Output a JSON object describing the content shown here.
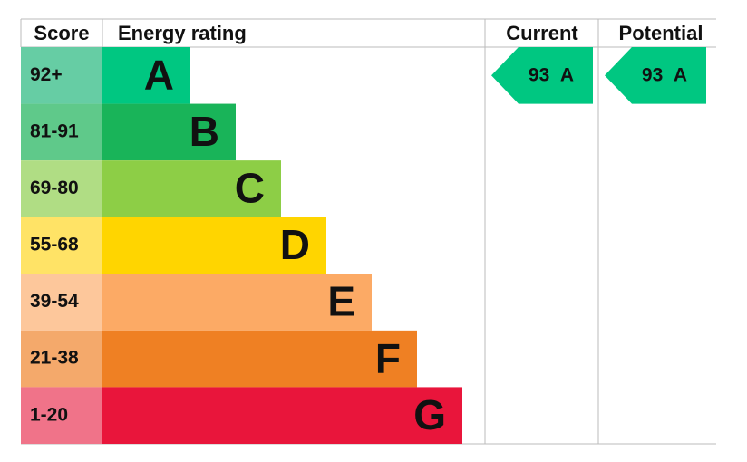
{
  "header": {
    "score": "Score",
    "rating": "Energy rating",
    "current": "Current",
    "potential": "Potential"
  },
  "bands": [
    {
      "score": "92+",
      "letter": "A",
      "color": "#00c781",
      "score_color": "#66cda4"
    },
    {
      "score": "81-91",
      "letter": "B",
      "color": "#19b459",
      "score_color": "#5fc98a"
    },
    {
      "score": "69-80",
      "letter": "C",
      "color": "#8dce46",
      "score_color": "#b0dd84"
    },
    {
      "score": "55-68",
      "letter": "D",
      "color": "#ffd500",
      "score_color": "#ffe366"
    },
    {
      "score": "39-54",
      "letter": "E",
      "color": "#fcaa65",
      "score_color": "#fdc79b"
    },
    {
      "score": "21-38",
      "letter": "F",
      "color": "#ef8023",
      "score_color": "#f4a96b"
    },
    {
      "score": "1-20",
      "letter": "G",
      "color": "#e9153b",
      "score_color": "#f07389"
    }
  ],
  "current": {
    "value": 93,
    "rating": "A",
    "color": "#00c781"
  },
  "potential": {
    "value": 93,
    "rating": "A",
    "color": "#00c781"
  }
}
